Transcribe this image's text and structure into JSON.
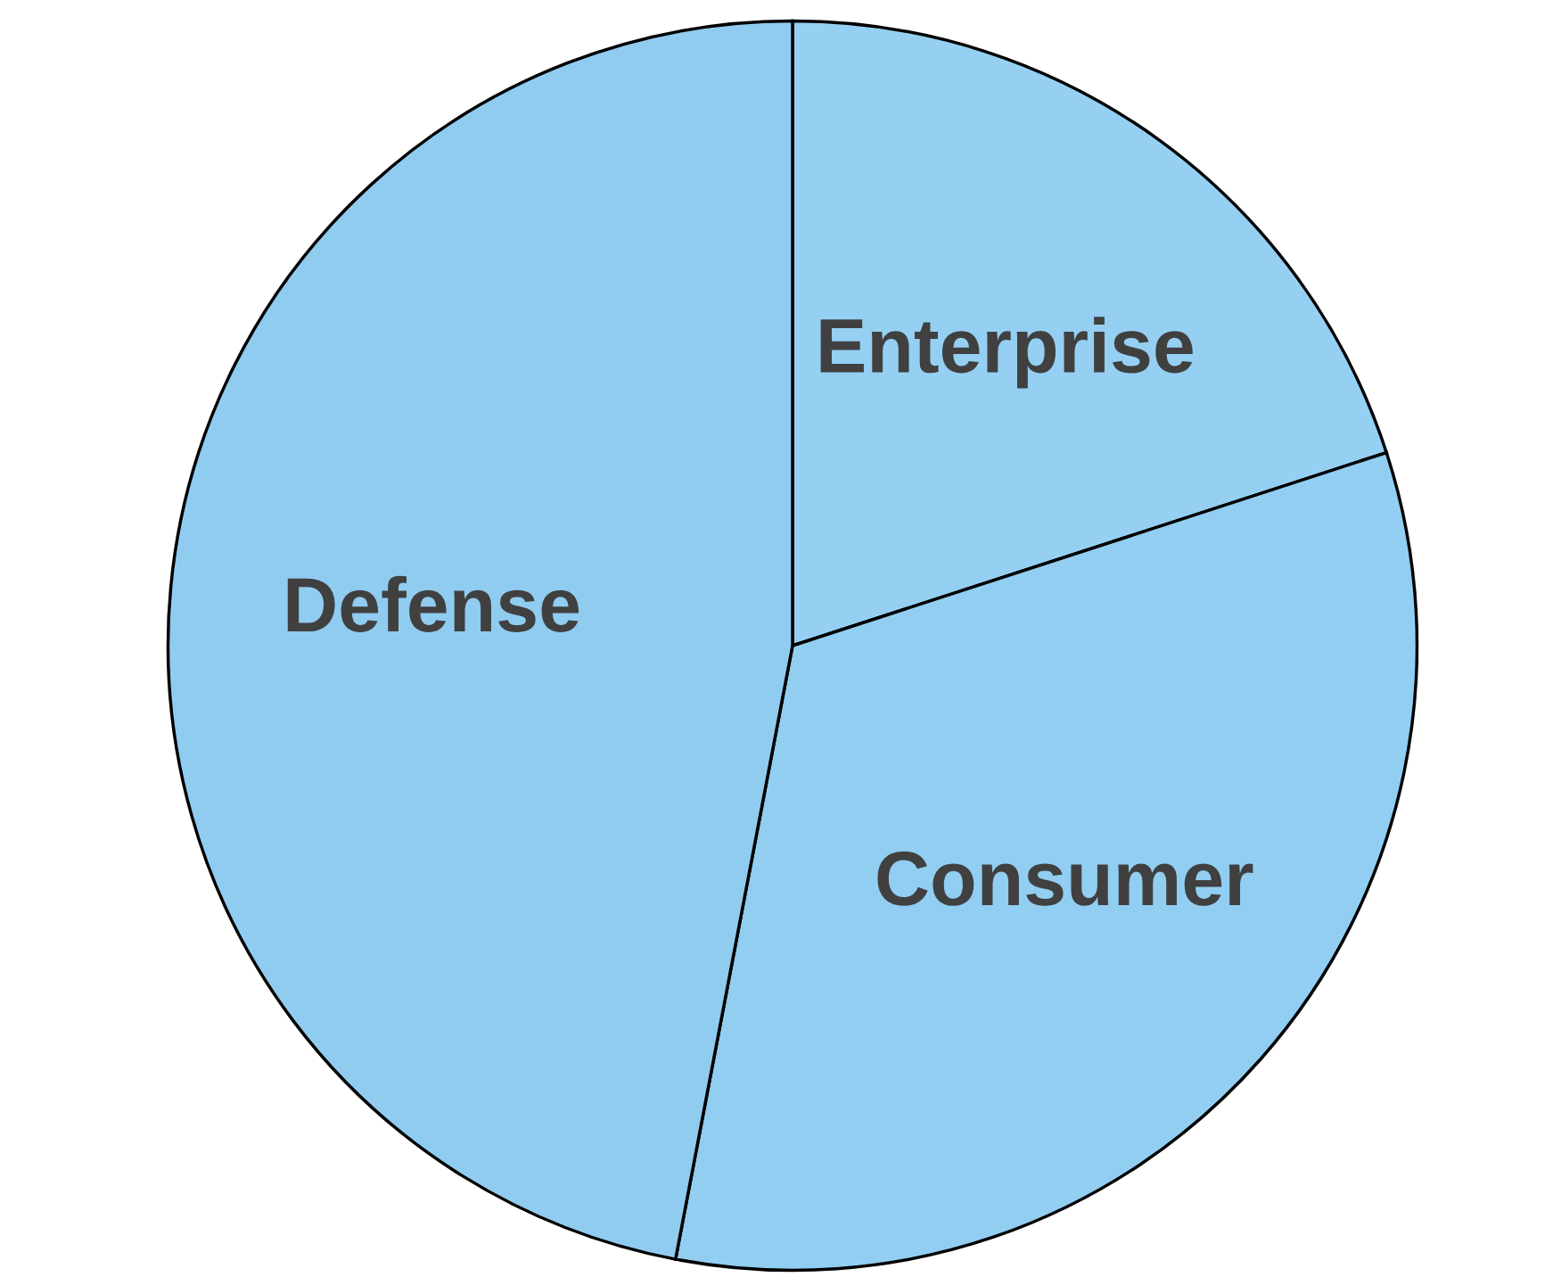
{
  "chart_data": {
    "type": "pie",
    "categories": [
      "Enterprise",
      "Consumer",
      "Defense"
    ],
    "values": [
      20,
      33,
      47
    ],
    "colors": [
      "#95d0f3",
      "#92cef1",
      "#90ccf0"
    ]
  }
}
